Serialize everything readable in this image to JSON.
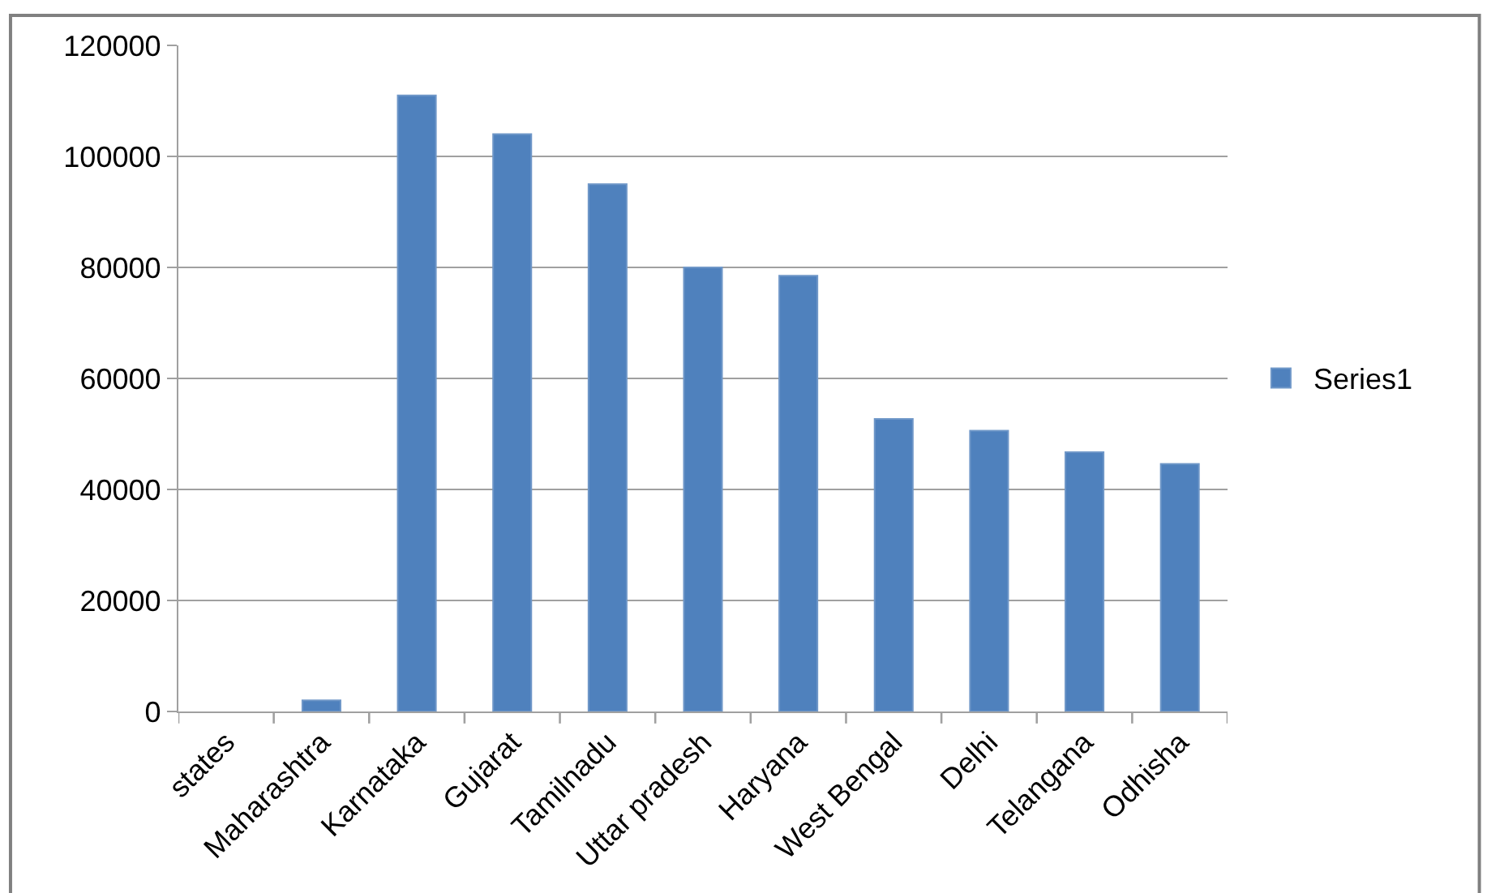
{
  "chart_data": {
    "type": "bar",
    "categories": [
      "states",
      "Maharashtra",
      "Karnataka",
      "Gujarat",
      "Tamilnadu",
      "Uttar pradesh",
      "Haryana",
      "West Bengal",
      "Delhi",
      "Telangana",
      "Odhisha"
    ],
    "series": [
      {
        "name": "Series1",
        "color": "#4f81bd",
        "values": [
          null,
          2000,
          111000,
          104000,
          95000,
          80000,
          78500,
          52700,
          50600,
          46700,
          44600
        ]
      }
    ],
    "ylim": [
      0,
      120000
    ],
    "yticks": [
      0,
      20000,
      40000,
      60000,
      80000,
      100000,
      120000
    ],
    "grid": "y",
    "legend": "right"
  }
}
